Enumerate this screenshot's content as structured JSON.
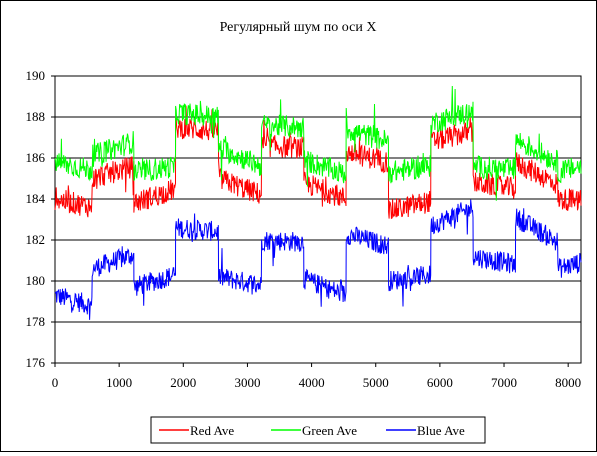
{
  "chart_data": {
    "type": "line",
    "title": "Регулярный шум по оси X",
    "xlabel": "",
    "ylabel": "",
    "xlim": [
      0,
      8200
    ],
    "ylim": [
      176,
      190
    ],
    "xticks": [
      "0",
      "1000",
      "2000",
      "3000",
      "4000",
      "5000",
      "6000",
      "7000",
      "8000"
    ],
    "yticks": [
      "176",
      "178",
      "180",
      "182",
      "184",
      "186",
      "188",
      "190"
    ],
    "grid": "horizontal",
    "legend_placement": "bottom-center",
    "segment_edges": [
      0,
      580,
      1230,
      1880,
      2550,
      3220,
      3880,
      4540,
      5200,
      5860,
      6520,
      7180,
      7840,
      8200
    ],
    "series": [
      {
        "name": "Red Ave",
        "color": "#ff0000",
        "noise": 0.55,
        "segments": [
          [
            184.0,
            183.6
          ],
          [
            185.0,
            185.6
          ],
          [
            183.8,
            184.5
          ],
          [
            187.5,
            187.3
          ],
          [
            185.0,
            184.2
          ],
          [
            186.6,
            186.5
          ],
          [
            184.8,
            184.0
          ],
          [
            186.3,
            185.8
          ],
          [
            183.4,
            183.9
          ],
          [
            186.8,
            187.3
          ],
          [
            184.8,
            184.5
          ],
          [
            185.8,
            184.7
          ],
          [
            184.0,
            183.9
          ]
        ]
      },
      {
        "name": "Green Ave",
        "color": "#00ff00",
        "noise": 0.55,
        "segments": [
          [
            185.8,
            185.4
          ],
          [
            186.1,
            186.8
          ],
          [
            185.3,
            185.6
          ],
          [
            188.2,
            188.0
          ],
          [
            186.5,
            185.6
          ],
          [
            187.6,
            187.5
          ],
          [
            185.9,
            185.2
          ],
          [
            187.4,
            186.8
          ],
          [
            185.3,
            185.6
          ],
          [
            187.7,
            188.3
          ],
          [
            185.6,
            185.4
          ],
          [
            186.9,
            185.8
          ],
          [
            185.3,
            185.6
          ]
        ]
      },
      {
        "name": "Blue Ave",
        "color": "#0000ff",
        "noise": 0.5,
        "segments": [
          [
            179.3,
            178.8
          ],
          [
            180.6,
            181.3
          ],
          [
            179.7,
            180.3
          ],
          [
            182.6,
            182.4
          ],
          [
            180.2,
            179.8
          ],
          [
            182.0,
            181.9
          ],
          [
            180.1,
            179.3
          ],
          [
            182.3,
            181.7
          ],
          [
            180.0,
            180.3
          ],
          [
            182.7,
            183.6
          ],
          [
            181.2,
            180.8
          ],
          [
            183.1,
            181.9
          ],
          [
            180.6,
            180.9
          ]
        ]
      }
    ]
  }
}
